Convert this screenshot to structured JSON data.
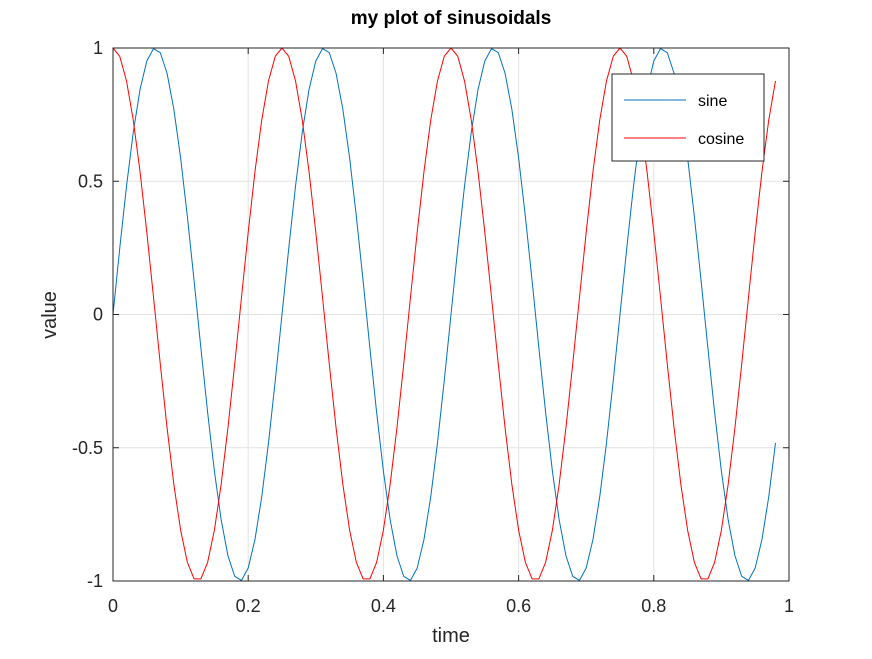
{
  "chart_data": {
    "type": "line",
    "title": "my plot of sinusoidals",
    "xlabel": "time",
    "ylabel": "value",
    "xlim": [
      0,
      1
    ],
    "ylim": [
      -1,
      1
    ],
    "xticks": [
      0,
      0.2,
      0.4,
      0.6,
      0.8,
      1
    ],
    "xtick_labels": [
      "0",
      "0.2",
      "0.4",
      "0.6",
      "0.8",
      "1"
    ],
    "yticks": [
      -1,
      -0.5,
      0,
      0.5,
      1
    ],
    "ytick_labels": [
      "-1",
      "-0.5",
      "0",
      "0.5",
      "1"
    ],
    "grid": true,
    "legend_position": "top-right",
    "x": [
      0,
      0.01,
      0.02,
      0.03,
      0.04,
      0.05,
      0.06,
      0.07,
      0.08,
      0.09,
      0.1,
      0.11,
      0.12,
      0.13,
      0.14,
      0.15,
      0.16,
      0.17,
      0.18,
      0.19,
      0.2,
      0.21,
      0.22,
      0.23,
      0.24,
      0.25,
      0.26,
      0.27,
      0.28,
      0.29,
      0.3,
      0.31,
      0.32,
      0.33,
      0.34,
      0.35,
      0.36,
      0.37,
      0.38,
      0.39,
      0.4,
      0.41,
      0.42,
      0.43,
      0.44,
      0.45,
      0.46,
      0.47,
      0.48,
      0.49,
      0.5,
      0.51,
      0.52,
      0.53,
      0.54,
      0.55,
      0.56,
      0.57,
      0.58,
      0.59,
      0.6,
      0.61,
      0.62,
      0.63,
      0.64,
      0.65,
      0.66,
      0.67,
      0.68,
      0.69,
      0.7,
      0.71,
      0.72,
      0.73,
      0.74,
      0.75,
      0.76,
      0.77,
      0.78,
      0.79,
      0.8,
      0.81,
      0.82,
      0.83,
      0.84,
      0.85,
      0.86,
      0.87,
      0.88,
      0.89,
      0.9,
      0.91,
      0.92,
      0.93,
      0.94,
      0.95,
      0.96,
      0.97,
      0.98
    ],
    "series": [
      {
        "name": "sine",
        "color": "#0072bd",
        "values": [
          0,
          0.2487,
          0.4818,
          0.6845,
          0.8443,
          0.9511,
          0.998,
          0.9823,
          0.9048,
          0.7705,
          0.5878,
          0.3681,
          0.1253,
          -0.1253,
          -0.3681,
          -0.5878,
          -0.7705,
          -0.9048,
          -0.9823,
          -0.998,
          -0.9511,
          -0.8443,
          -0.6845,
          -0.4818,
          -0.2487,
          0,
          0.2487,
          0.4818,
          0.6845,
          0.8443,
          0.9511,
          0.998,
          0.9823,
          0.9048,
          0.7705,
          0.5878,
          0.3681,
          0.1253,
          -0.1253,
          -0.3681,
          -0.5878,
          -0.7705,
          -0.9048,
          -0.9823,
          -0.998,
          -0.9511,
          -0.8443,
          -0.6845,
          -0.4818,
          -0.2487,
          0,
          0.2487,
          0.4818,
          0.6845,
          0.8443,
          0.9511,
          0.998,
          0.9823,
          0.9048,
          0.7705,
          0.5878,
          0.3681,
          0.1253,
          -0.1253,
          -0.3681,
          -0.5878,
          -0.7705,
          -0.9048,
          -0.9823,
          -0.998,
          -0.9511,
          -0.8443,
          -0.6845,
          -0.4818,
          -0.2487,
          0,
          0.2487,
          0.4818,
          0.6845,
          0.8443,
          0.9511,
          0.998,
          0.9823,
          0.9048,
          0.7705,
          0.5878,
          0.3681,
          0.1253,
          -0.1253,
          -0.3681,
          -0.5878,
          -0.7705,
          -0.9048,
          -0.9823,
          -0.998,
          -0.9511,
          -0.8443,
          -0.6845,
          -0.4818
        ]
      },
      {
        "name": "cosine",
        "color": "#ff0000",
        "values": [
          1,
          0.9686,
          0.8763,
          0.729,
          0.5358,
          0.309,
          0.0628,
          -0.1874,
          -0.4258,
          -0.6374,
          -0.809,
          -0.9298,
          -0.9921,
          -0.9921,
          -0.9298,
          -0.809,
          -0.6374,
          -0.4258,
          -0.1874,
          0.0628,
          0.309,
          0.5358,
          0.729,
          0.8763,
          0.9686,
          1,
          0.9686,
          0.8763,
          0.729,
          0.5358,
          0.309,
          0.0628,
          -0.1874,
          -0.4258,
          -0.6374,
          -0.809,
          -0.9298,
          -0.9921,
          -0.9921,
          -0.9298,
          -0.809,
          -0.6374,
          -0.4258,
          -0.1874,
          0.0628,
          0.309,
          0.5358,
          0.729,
          0.8763,
          0.9686,
          1,
          0.9686,
          0.8763,
          0.729,
          0.5358,
          0.309,
          0.0628,
          -0.1874,
          -0.4258,
          -0.6374,
          -0.809,
          -0.9298,
          -0.9921,
          -0.9921,
          -0.9298,
          -0.809,
          -0.6374,
          -0.4258,
          -0.1874,
          0.0628,
          0.309,
          0.5358,
          0.729,
          0.8763,
          0.9686,
          1,
          0.9686,
          0.8763,
          0.729,
          0.5358,
          0.309,
          0.0628,
          -0.1874,
          -0.4258,
          -0.6374,
          -0.809,
          -0.9298,
          -0.9921,
          -0.9921,
          -0.9298,
          -0.809,
          -0.6374,
          -0.4258,
          -0.1874,
          0.0628,
          0.309,
          0.5358,
          0.729,
          0.8763
        ]
      }
    ]
  }
}
